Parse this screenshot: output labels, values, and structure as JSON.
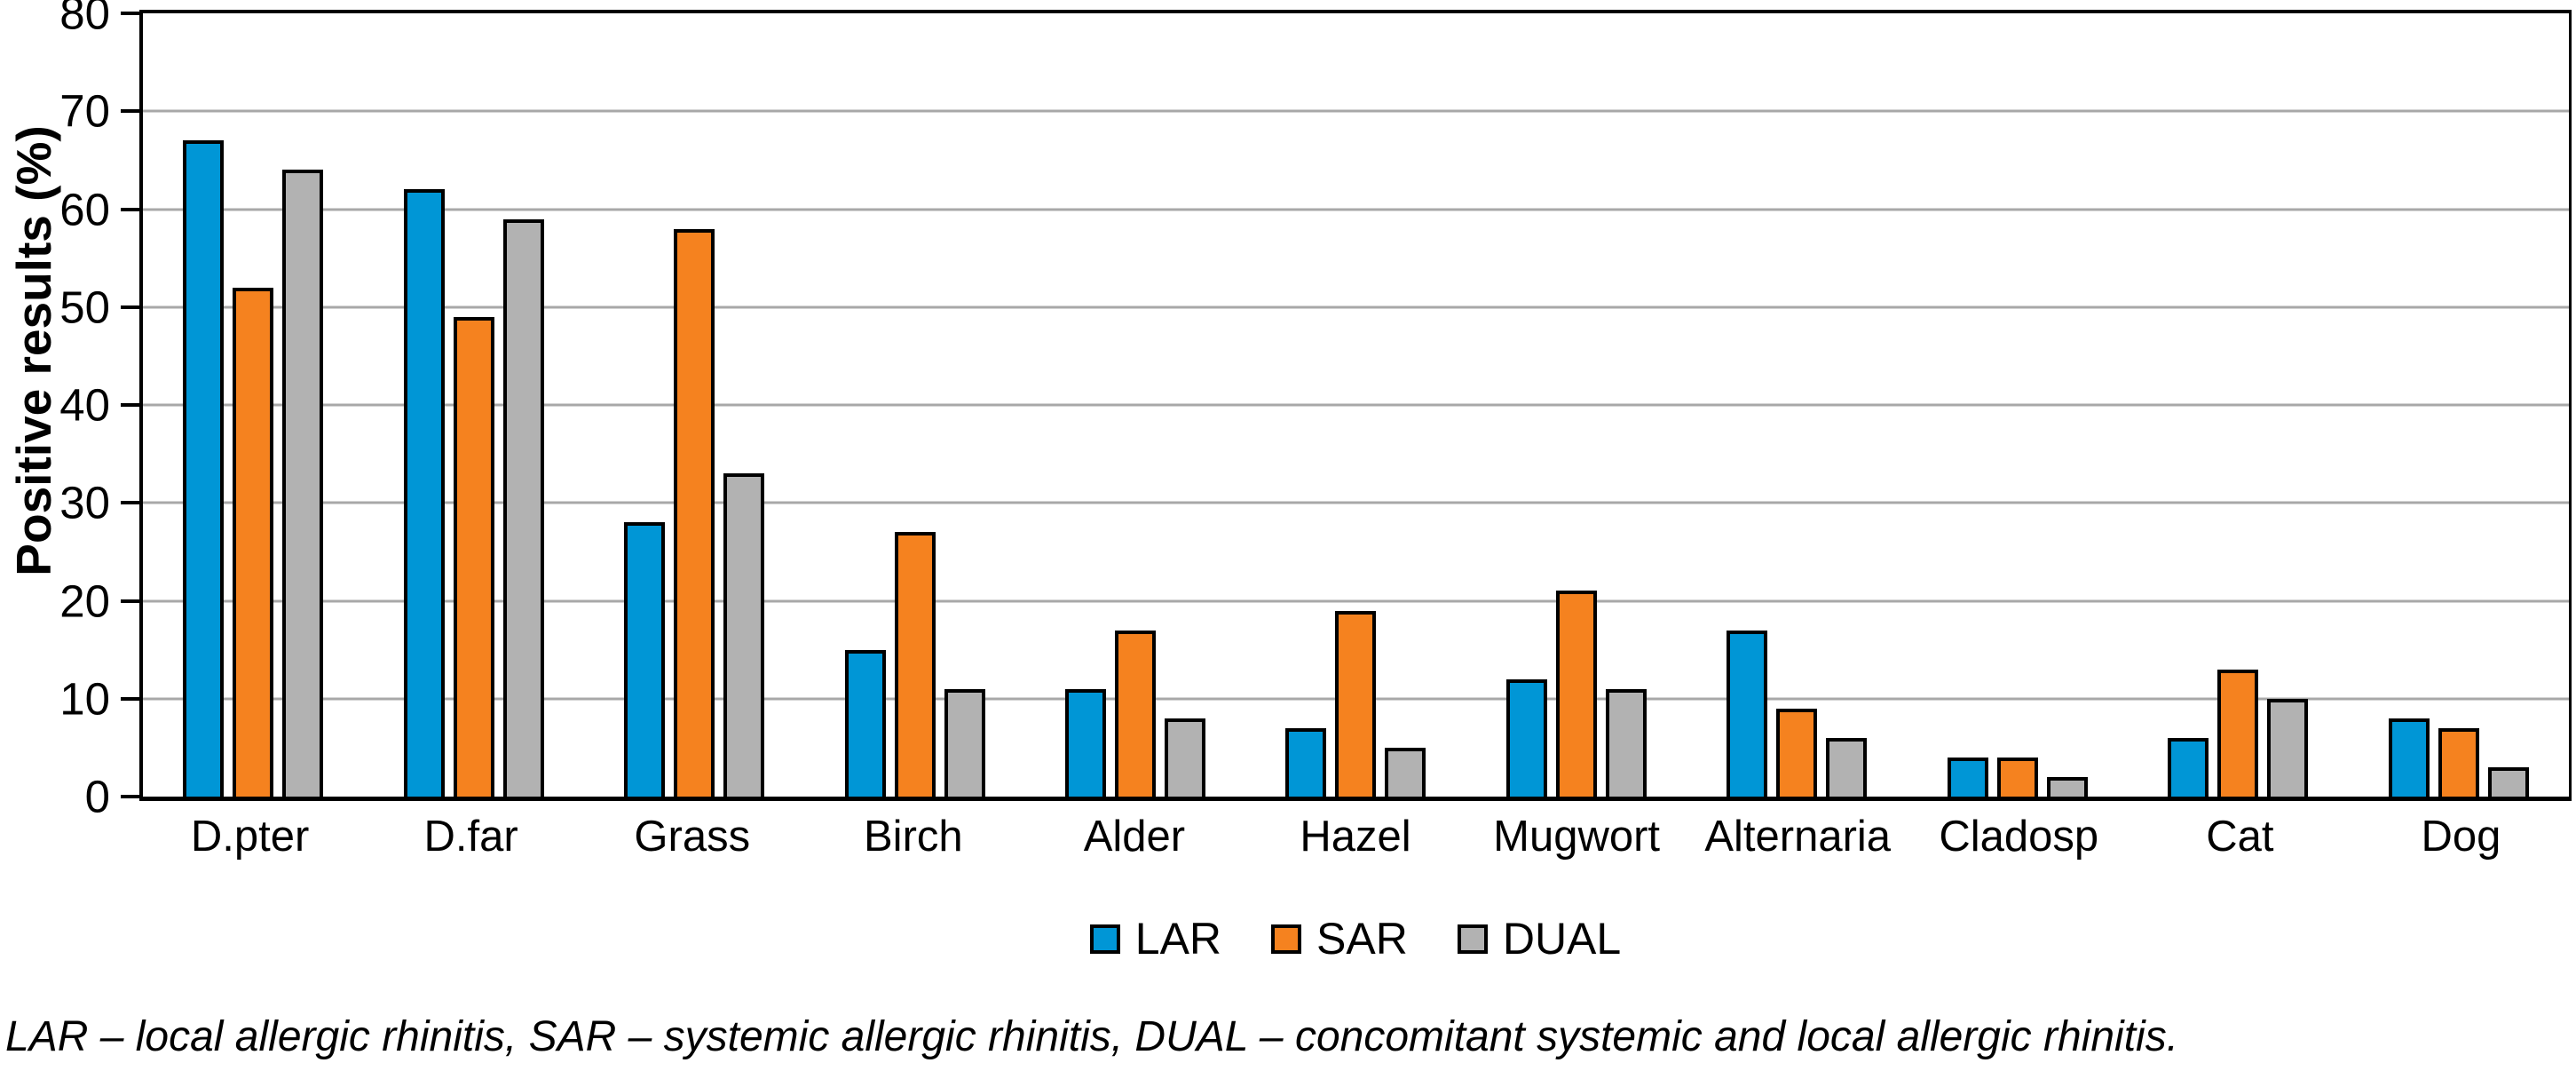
{
  "figure": {
    "footnote": "LAR – local allergic rhinitis, SAR – systemic allergic rhinitis, DUAL – concomitant systemic and local allergic rhinitis."
  },
  "chart_data": {
    "type": "bar",
    "title": "",
    "xlabel": "",
    "ylabel": "Positive results (%)",
    "ylim": [
      0,
      80
    ],
    "ytick_step": 10,
    "yticks": [
      0,
      10,
      20,
      30,
      40,
      50,
      60,
      70,
      80
    ],
    "grid": "horizontal",
    "gridline_color": "#a8a8a8",
    "axis_color": "#000000",
    "legend_position": "bottom",
    "categories": [
      "D.pter",
      "D.far",
      "Grass",
      "Birch",
      "Alder",
      "Hazel",
      "Mugwort",
      "Alternaria",
      "Cladosp",
      "Cat",
      "Dog"
    ],
    "series": [
      {
        "name": "LAR",
        "color": "#0096d6",
        "values": [
          67,
          62,
          28,
          15,
          11,
          7,
          12,
          17,
          4,
          6,
          8
        ]
      },
      {
        "name": "SAR",
        "color": "#f5821f",
        "values": [
          52,
          49,
          58,
          27,
          17,
          19,
          21,
          9,
          4,
          13,
          7
        ]
      },
      {
        "name": "DUAL",
        "color": "#b2b2b2",
        "values": [
          64,
          59,
          33,
          11,
          8,
          5,
          11,
          6,
          2,
          10,
          3
        ]
      }
    ]
  }
}
